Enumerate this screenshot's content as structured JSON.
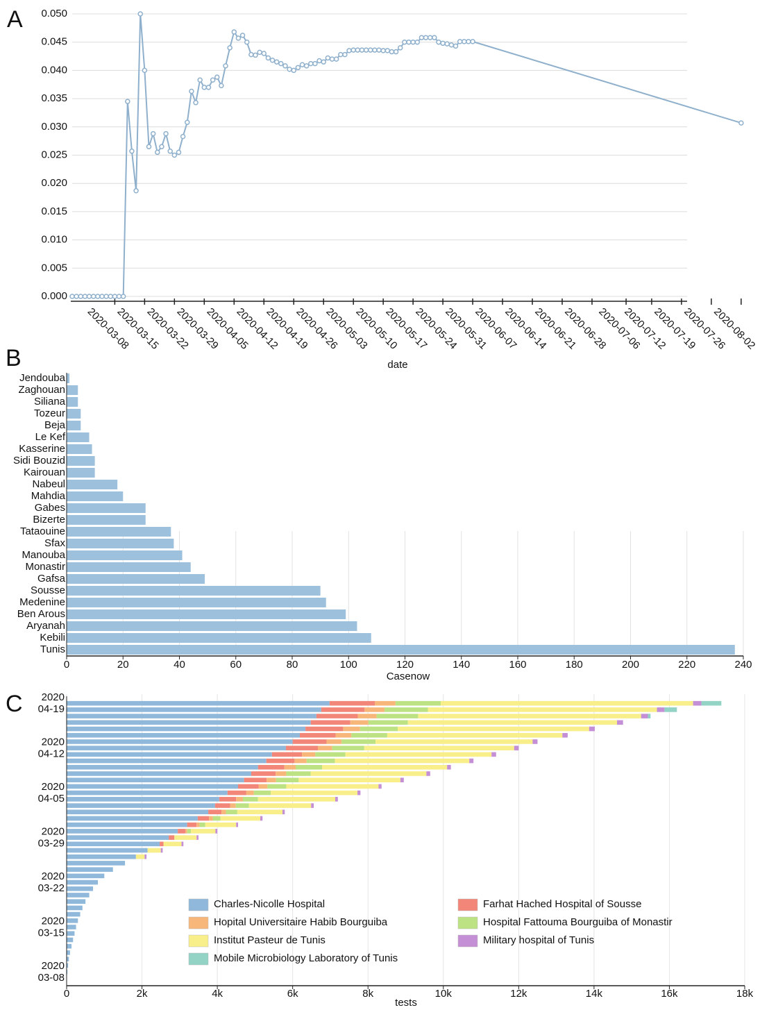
{
  "chart_data": [
    {
      "type": "line",
      "panel_label": "A",
      "x_label": "date",
      "color": "#8fb0cc",
      "grid": true,
      "x": [
        "2020-02-27",
        "2020-02-28",
        "2020-02-29",
        "2020-03-01",
        "2020-03-02",
        "2020-03-03",
        "2020-03-04",
        "2020-03-05",
        "2020-03-06",
        "2020-03-07",
        "2020-03-08",
        "2020-03-09",
        "2020-03-10",
        "2020-03-11",
        "2020-03-12",
        "2020-03-13",
        "2020-03-14",
        "2020-03-15",
        "2020-03-16",
        "2020-03-17",
        "2020-03-18",
        "2020-03-19",
        "2020-03-20",
        "2020-03-21",
        "2020-03-22",
        "2020-03-23",
        "2020-03-24",
        "2020-03-25",
        "2020-03-26",
        "2020-03-27",
        "2020-03-28",
        "2020-03-29",
        "2020-03-30",
        "2020-03-31",
        "2020-04-01",
        "2020-04-02",
        "2020-04-03",
        "2020-04-04",
        "2020-04-05",
        "2020-04-06",
        "2020-04-07",
        "2020-04-08",
        "2020-04-09",
        "2020-04-10",
        "2020-04-11",
        "2020-04-12",
        "2020-04-13",
        "2020-04-14",
        "2020-04-15",
        "2020-04-16",
        "2020-04-17",
        "2020-04-18",
        "2020-04-19",
        "2020-04-20",
        "2020-04-21",
        "2020-04-22",
        "2020-04-23",
        "2020-04-24",
        "2020-04-25",
        "2020-04-26",
        "2020-04-27",
        "2020-04-28",
        "2020-04-29",
        "2020-04-30",
        "2020-05-01",
        "2020-05-02",
        "2020-05-03",
        "2020-05-04",
        "2020-05-05",
        "2020-05-06",
        "2020-05-07",
        "2020-05-08",
        "2020-05-09",
        "2020-05-10",
        "2020-05-11",
        "2020-05-12",
        "2020-05-13",
        "2020-05-14",
        "2020-05-15",
        "2020-05-16",
        "2020-05-17",
        "2020-05-18",
        "2020-05-19",
        "2020-05-20",
        "2020-05-21",
        "2020-05-22",
        "2020-05-23",
        "2020-05-24",
        "2020-05-25",
        "2020-05-26",
        "2020-05-27",
        "2020-05-28",
        "2020-05-29",
        "2020-05-30",
        "2020-05-31",
        "2020-08-02"
      ],
      "values": [
        0,
        0,
        0,
        0,
        0,
        0,
        0,
        0,
        0,
        0,
        0,
        0,
        0,
        0.0345,
        0.0257,
        0.0187,
        0.05,
        0.04,
        0.0265,
        0.0288,
        0.0255,
        0.0265,
        0.0288,
        0.0257,
        0.025,
        0.0255,
        0.0283,
        0.0308,
        0.0363,
        0.0343,
        0.0383,
        0.037,
        0.037,
        0.0383,
        0.0388,
        0.0373,
        0.0408,
        0.044,
        0.0468,
        0.0457,
        0.0462,
        0.045,
        0.0428,
        0.0427,
        0.0432,
        0.043,
        0.0422,
        0.0418,
        0.0415,
        0.0412,
        0.0408,
        0.0402,
        0.04,
        0.0405,
        0.041,
        0.0408,
        0.0412,
        0.0412,
        0.0417,
        0.0415,
        0.0422,
        0.042,
        0.042,
        0.0428,
        0.0428,
        0.0435,
        0.0436,
        0.0436,
        0.0436,
        0.0436,
        0.0436,
        0.0436,
        0.0436,
        0.0435,
        0.0435,
        0.0433,
        0.0433,
        0.044,
        0.045,
        0.045,
        0.045,
        0.045,
        0.0458,
        0.0458,
        0.0458,
        0.0458,
        0.045,
        0.0448,
        0.0447,
        0.0445,
        0.0443,
        0.0451,
        0.0451,
        0.0451,
        0.0451,
        0.0307
      ],
      "xlim": [
        "2020-02-27",
        "2020-08-03"
      ],
      "xticks": [
        "2020-03-08",
        "2020-03-15",
        "2020-03-22",
        "2020-03-29",
        "2020-04-05",
        "2020-04-12",
        "2020-04-19",
        "2020-04-26",
        "2020-05-03",
        "2020-05-10",
        "2020-05-17",
        "2020-05-24",
        "2020-05-31",
        "2020-06-07",
        "2020-06-14",
        "2020-06-21",
        "2020-06-28",
        "2020-07-06",
        "2020-07-12",
        "2020-07-19",
        "2020-07-26",
        "2020-08-02"
      ],
      "ylim": [
        0,
        0.05
      ],
      "yticks": [
        {
          "value": 0,
          "label": "0.000"
        },
        {
          "value": 0.005,
          "label": "0.005"
        },
        {
          "value": 0.01,
          "label": "0.010"
        },
        {
          "value": 0.015,
          "label": "0.015"
        },
        {
          "value": 0.02,
          "label": "0.020"
        },
        {
          "value": 0.025,
          "label": "0.025"
        },
        {
          "value": 0.03,
          "label": "0.030"
        },
        {
          "value": 0.035,
          "label": "0.035"
        },
        {
          "value": 0.04,
          "label": "0.040"
        },
        {
          "value": 0.045,
          "label": "0.045"
        },
        {
          "value": 0.05,
          "label": "0.050"
        }
      ]
    },
    {
      "type": "bar",
      "orientation": "horizontal",
      "panel_label": "B",
      "x_label": "Casenow",
      "color": "#9dc0dd",
      "grid": true,
      "categories": [
        "Jendouba",
        "Zaghouan",
        "Siliana",
        "Tozeur",
        "Beja",
        "Le Kef",
        "Kasserine",
        "Sidi Bouzid",
        "Kairouan",
        "Nabeul",
        "Mahdia",
        "Gabes",
        "Bizerte",
        "Tataouine",
        "Sfax",
        "Manouba",
        "Monastir",
        "Gafsa",
        "Sousse",
        "Medenine",
        "Ben Arous",
        "Aryanah",
        "Kebili",
        "Tunis"
      ],
      "values": [
        1,
        4,
        4,
        5,
        5,
        8,
        9,
        10,
        10,
        18,
        20,
        28,
        28,
        37,
        38,
        41,
        44,
        49,
        90,
        92,
        99,
        103,
        108,
        237
      ],
      "xlim": [
        0,
        240
      ],
      "xticks": [
        0,
        20,
        40,
        60,
        80,
        100,
        120,
        140,
        160,
        180,
        200,
        220,
        240
      ]
    },
    {
      "type": "stacked_bar",
      "orientation": "horizontal",
      "panel_label": "C",
      "x_label": "tests",
      "grid": true,
      "legend": "bottom",
      "categories": [
        [
          "2020",
          "03-08"
        ],
        null,
        null,
        null,
        null,
        null,
        null,
        [
          "2020",
          "03-15"
        ],
        null,
        null,
        null,
        null,
        null,
        null,
        [
          "2020",
          "03-22"
        ],
        null,
        null,
        null,
        null,
        null,
        null,
        [
          "2020",
          "03-29"
        ],
        null,
        null,
        null,
        null,
        null,
        null,
        [
          "2020",
          "04-05"
        ],
        null,
        null,
        null,
        null,
        null,
        null,
        [
          "2020",
          "04-12"
        ],
        null,
        null,
        null,
        null,
        null,
        null,
        [
          "2020",
          "04-19"
        ]
      ],
      "series": [
        {
          "name": "Charles-Nicolle Hospital",
          "color": "#8fb8da",
          "values": [
            20,
            40,
            60,
            90,
            130,
            170,
            210,
            250,
            300,
            360,
            420,
            500,
            600,
            700,
            830,
            1000,
            1230,
            1550,
            1840,
            2150,
            2470,
            2710,
            2950,
            3200,
            3480,
            3760,
            3940,
            4050,
            4270,
            4550,
            4710,
            4900,
            5080,
            5300,
            5450,
            5820,
            6000,
            6190,
            6340,
            6480,
            6630,
            6760,
            6980
          ]
        },
        {
          "name": "Farhat Hached Hospital of Sousse",
          "color": "#f28679",
          "values": [
            0,
            0,
            0,
            0,
            0,
            0,
            0,
            0,
            0,
            0,
            0,
            0,
            0,
            0,
            0,
            0,
            0,
            0,
            0,
            0,
            100,
            150,
            200,
            250,
            300,
            350,
            400,
            450,
            500,
            550,
            600,
            650,
            700,
            750,
            800,
            850,
            900,
            950,
            1000,
            1050,
            1100,
            1150,
            1200
          ]
        },
        {
          "name": "Hopital Universitaire Habib Bourguiba",
          "color": "#f7b77a",
          "values": [
            0,
            0,
            0,
            0,
            0,
            0,
            0,
            0,
            0,
            0,
            0,
            0,
            0,
            0,
            0,
            0,
            0,
            0,
            0,
            0,
            0,
            0,
            50,
            80,
            100,
            120,
            150,
            180,
            200,
            230,
            250,
            280,
            300,
            320,
            350,
            380,
            400,
            420,
            450,
            480,
            500,
            530,
            550
          ]
        },
        {
          "name": "Hospital Fattouma Bourguiba of Monastir",
          "color": "#bde283",
          "values": [
            0,
            0,
            0,
            0,
            0,
            0,
            0,
            0,
            0,
            0,
            0,
            0,
            0,
            0,
            0,
            0,
            0,
            0,
            0,
            0,
            0,
            0,
            100,
            150,
            200,
            300,
            350,
            400,
            450,
            500,
            600,
            650,
            700,
            750,
            800,
            850,
            900,
            950,
            1000,
            1050,
            1100,
            1150,
            1200
          ]
        },
        {
          "name": "Institut Pasteur de Tunis",
          "color": "#f8ee8a",
          "values": [
            0,
            0,
            0,
            0,
            0,
            0,
            0,
            0,
            0,
            0,
            0,
            0,
            0,
            0,
            0,
            0,
            0,
            0,
            230,
            350,
            480,
            590,
            650,
            820,
            1060,
            1200,
            1650,
            2050,
            2300,
            2450,
            2700,
            3070,
            3320,
            3570,
            3880,
            3980,
            4170,
            4650,
            5080,
            5550,
            5920,
            6080,
            6700
          ]
        },
        {
          "name": "Military hospital of Tunis",
          "color": "#c48fd4",
          "values": [
            0,
            0,
            0,
            0,
            0,
            0,
            0,
            0,
            0,
            0,
            0,
            0,
            0,
            0,
            0,
            0,
            0,
            0,
            50,
            50,
            50,
            50,
            50,
            50,
            60,
            60,
            70,
            70,
            80,
            80,
            90,
            100,
            100,
            110,
            120,
            120,
            130,
            140,
            150,
            160,
            180,
            200,
            220
          ]
        },
        {
          "name": "Mobile Microbiology Laboratory of Tunis",
          "color": "#92d3c6",
          "values": [
            0,
            0,
            0,
            0,
            0,
            0,
            0,
            0,
            0,
            0,
            0,
            0,
            0,
            0,
            0,
            0,
            0,
            0,
            0,
            0,
            0,
            0,
            0,
            0,
            0,
            0,
            0,
            0,
            0,
            0,
            0,
            0,
            0,
            0,
            0,
            0,
            0,
            0,
            0,
            0,
            70,
            330,
            530
          ]
        }
      ],
      "xlim": [
        0,
        18000
      ],
      "xticks": [
        0,
        {
          "value": 2000,
          "label": "2k"
        },
        {
          "value": 4000,
          "label": "4k"
        },
        {
          "value": 6000,
          "label": "6k"
        },
        {
          "value": 8000,
          "label": "8k"
        },
        {
          "value": 10000,
          "label": "10k"
        },
        {
          "value": 12000,
          "label": "12k"
        },
        {
          "value": 14000,
          "label": "14k"
        },
        {
          "value": 16000,
          "label": "16k"
        },
        {
          "value": 18000,
          "label": "18k"
        }
      ]
    }
  ]
}
